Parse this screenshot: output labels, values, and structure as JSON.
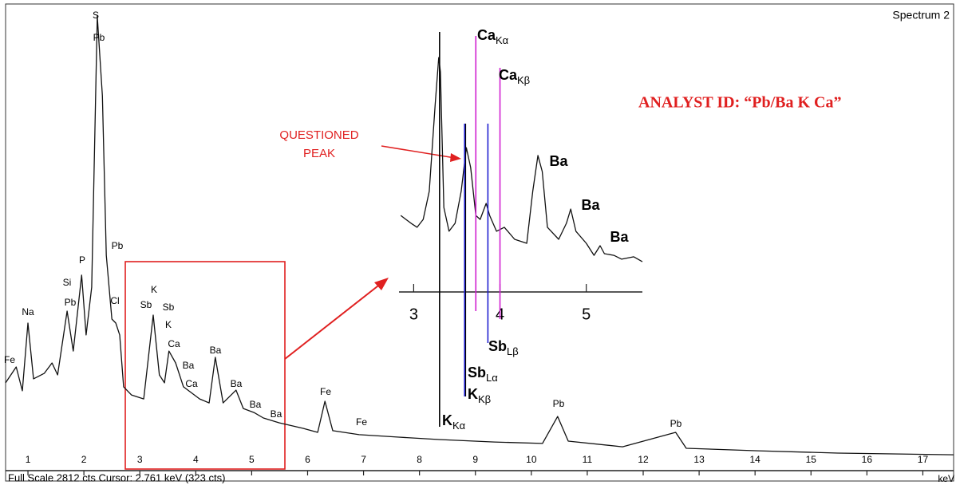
{
  "chart_data": [
    {
      "type": "line",
      "title": "Spectrum 2",
      "x_unit": "keV",
      "footer": "Full Scale 2812 cts  Cursor: 2.761 keV (323 cts)",
      "xlim": [
        0.6,
        17.55
      ],
      "xticks": [
        1,
        2,
        3,
        4,
        5,
        6,
        7,
        8,
        9,
        10,
        11,
        12,
        13,
        14,
        15,
        16,
        17
      ],
      "ylim": [
        0,
        2812
      ],
      "color": "#111111",
      "x": [
        0.6,
        0.79,
        0.9,
        1.0,
        1.1,
        1.29,
        1.43,
        1.53,
        1.7,
        1.81,
        1.96,
        2.04,
        2.14,
        2.24,
        2.33,
        2.4,
        2.5,
        2.57,
        2.64,
        2.71,
        2.85,
        3.07,
        3.24,
        3.35,
        3.44,
        3.52,
        3.64,
        3.78,
        4.07,
        4.24,
        4.35,
        4.49,
        4.72,
        4.85,
        5.04,
        5.21,
        5.49,
        5.92,
        6.18,
        6.31,
        6.45,
        6.92,
        7.63,
        8.35,
        9.34,
        10.2,
        10.47,
        10.66,
        11.63,
        12.58,
        12.77,
        14.05,
        15.48,
        17.55
      ],
      "values": [
        530,
        626,
        482,
        891,
        554,
        587,
        650,
        578,
        963,
        722,
        1180,
        819,
        1107,
        2744,
        2263,
        1300,
        915,
        891,
        819,
        506,
        457,
        433,
        939,
        578,
        530,
        722,
        650,
        506,
        433,
        409,
        684,
        409,
        486,
        375,
        351,
        318,
        289,
        255,
        231,
        419,
        241,
        217,
        202,
        188,
        173,
        164,
        327,
        178,
        144,
        231,
        135,
        120,
        106,
        96
      ],
      "annotations": [
        "Fe",
        "Na",
        "Pb",
        "Si",
        "P",
        "S",
        "Pb",
        "Pb",
        "Cl",
        "K",
        "Sb",
        "Sb",
        "K",
        "Ca",
        "Ba",
        "Ca",
        "Ba",
        "Ba",
        "Ba",
        "Ba",
        "Fe",
        "Fe",
        "Pb",
        "Pb"
      ]
    },
    {
      "type": "line",
      "xlim": [
        2.83,
        5.65
      ],
      "xticks": [
        3,
        4,
        5
      ],
      "ylim": [
        0,
        100
      ],
      "color": "#111111",
      "x": [
        2.85,
        2.97,
        3.04,
        3.11,
        3.18,
        3.25,
        3.29,
        3.31,
        3.35,
        3.41,
        3.48,
        3.55,
        3.61,
        3.66,
        3.72,
        3.77,
        3.84,
        3.88,
        3.96,
        4.05,
        4.17,
        4.31,
        4.38,
        4.44,
        4.49,
        4.55,
        4.68,
        4.77,
        4.82,
        4.88,
        5.0,
        5.09,
        5.16,
        5.21,
        5.32,
        5.41,
        5.55,
        5.65
      ],
      "values": [
        32.4,
        29.1,
        27.4,
        30.7,
        42.6,
        79.7,
        99.3,
        93.2,
        35.8,
        25.7,
        29.1,
        42.6,
        61.1,
        52.7,
        32.4,
        30.7,
        37.5,
        32.4,
        25.7,
        27.4,
        22.3,
        20.6,
        42.6,
        57.8,
        51.0,
        27.4,
        22.3,
        29.1,
        35.1,
        25.7,
        20.6,
        15.5,
        19.6,
        16.2,
        15.5,
        13.9,
        14.9,
        12.8
      ],
      "annotations": [
        "Ba",
        "Ba",
        "Ba"
      ],
      "lines": [
        {
          "element": "K",
          "subscript": "Kα",
          "x": 3.3,
          "color": "#000000"
        },
        {
          "element": "K",
          "subscript": "Kβ",
          "x": 3.6,
          "color": "#000000"
        },
        {
          "element": "Sb",
          "subscript": "Lα",
          "x": 3.59,
          "color": "#2020d0"
        },
        {
          "element": "Ca",
          "subscript": "Kα",
          "x": 3.72,
          "color": "#d020d0"
        },
        {
          "element": "Sb",
          "subscript": "Lβ",
          "x": 3.86,
          "color": "#2020d0"
        },
        {
          "element": "Ca",
          "subscript": "Kβ",
          "x": 4.0,
          "color": "#d020d0"
        }
      ]
    }
  ],
  "callout": {
    "lines": [
      "QUESTIONED",
      "PEAK"
    ],
    "color": "#e02020"
  },
  "analyst_id": {
    "text": "ANALYST ID:  “Pb/Ba K Ca”",
    "color": "#e02020"
  }
}
